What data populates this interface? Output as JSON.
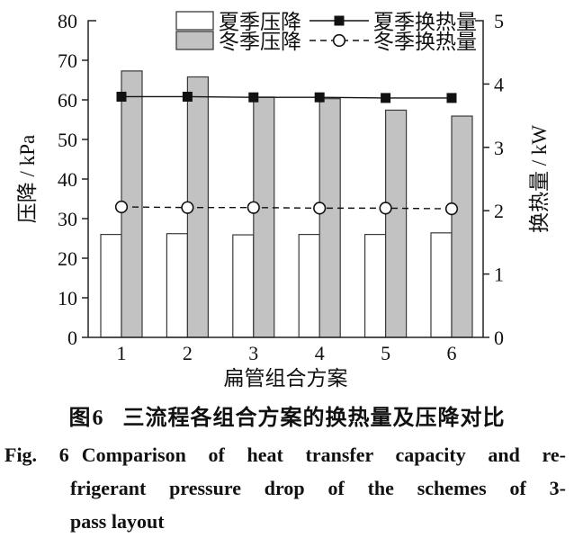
{
  "captions": {
    "zh_label": "图6",
    "zh_text": "三流程各组合方案的换热量及压降对比",
    "en_fig_label": "Fig. 6",
    "en_line1": "Comparison of heat transfer capacity and re-",
    "en_line2": "frigerant pressure drop of the schemes of 3-",
    "en_line3": "pass layout"
  },
  "chart_data": {
    "type": "bar+line",
    "categories": [
      "1",
      "2",
      "3",
      "4",
      "5",
      "6"
    ],
    "xlabel": "扁管组合方案",
    "grid": false,
    "legend_position": "top-inside",
    "axes": {
      "left": {
        "label": "压降 / kPa",
        "min": 0,
        "max": 80,
        "ticks": [
          0,
          10,
          20,
          30,
          40,
          50,
          60,
          70,
          80
        ]
      },
      "right": {
        "label": "换热量 / kW",
        "min": 0,
        "max": 5,
        "ticks": [
          0,
          1,
          2,
          3,
          4,
          5
        ]
      }
    },
    "series": [
      {
        "key": "summer-pressure-drop",
        "name": "夏季压降",
        "type": "bar",
        "axis": "left",
        "fill": "#ffffff",
        "values": [
          26.0,
          26.2,
          25.9,
          26.0,
          26.0,
          26.4
        ]
      },
      {
        "key": "winter-pressure-drop",
        "name": "冬季压降",
        "type": "bar",
        "axis": "left",
        "fill": "#c2c2c2",
        "values": [
          67.3,
          65.8,
          60.7,
          60.3,
          57.4,
          55.9
        ]
      },
      {
        "key": "summer-heat-transfer",
        "name": "夏季换热量",
        "type": "line",
        "axis": "right",
        "style": "solid",
        "marker": "filled-square",
        "color": "#111111",
        "values": [
          3.8,
          3.8,
          3.79,
          3.79,
          3.78,
          3.78
        ]
      },
      {
        "key": "winter-heat-transfer",
        "name": "冬季换热量",
        "type": "line",
        "axis": "right",
        "style": "dashed",
        "marker": "open-circle",
        "color": "#111111",
        "values": [
          2.06,
          2.05,
          2.05,
          2.04,
          2.04,
          2.03
        ]
      }
    ]
  }
}
